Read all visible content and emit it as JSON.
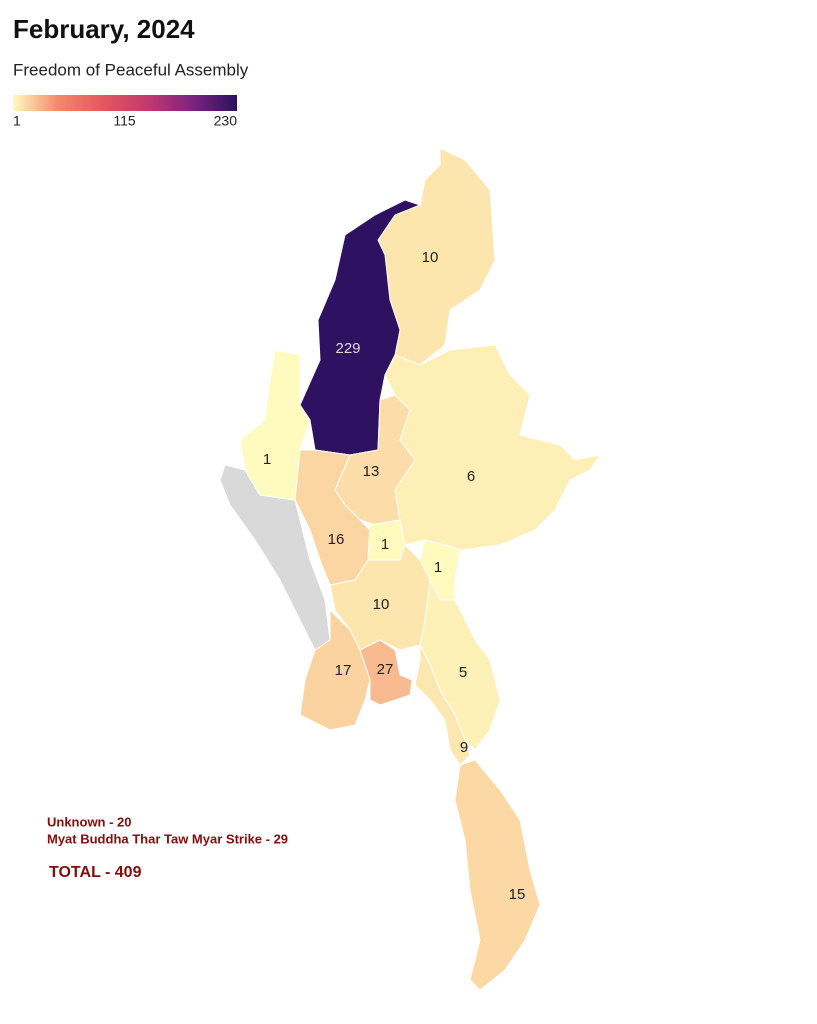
{
  "map": {
    "title": "February, 2024",
    "subtitle": "Freedom of Peaceful Assembly",
    "scale": {
      "ticks": [
        1,
        115,
        230
      ],
      "colors": [
        "#fffbbf",
        "#f4896a",
        "#e5575f",
        "#c23a6e",
        "#7c2380",
        "#2c115f"
      ],
      "no_data_color": "#d9d9d9"
    },
    "regions": [
      {
        "value": 10
      },
      {
        "value": 229
      },
      {
        "value": 1
      },
      {
        "value": 13
      },
      {
        "value": 6
      },
      {
        "value": 16
      },
      {
        "value": 1
      },
      {
        "value": 1
      },
      {
        "value": 10
      },
      {
        "value": 17
      },
      {
        "value": 27
      },
      {
        "value": 5
      },
      {
        "value": 9
      },
      {
        "value": 15
      }
    ],
    "notes": [
      "Unknown - 20",
      "Myat Buddha Thar Taw Myar Strike - 29"
    ],
    "total": "TOTAL - 409"
  }
}
